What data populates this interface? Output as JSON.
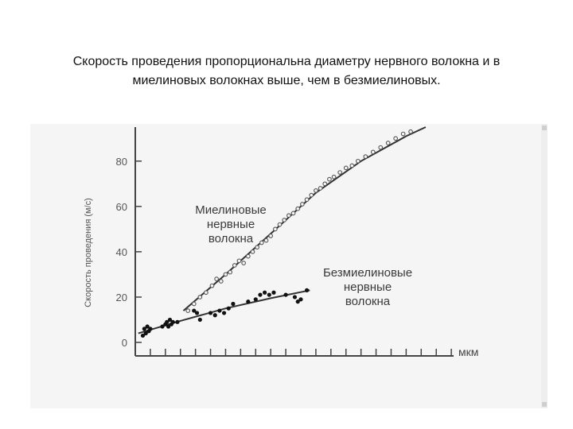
{
  "slide": {
    "title_line1": "Скорость проведения пропорциональна диаметру нервного волокна и в",
    "title_line2": "миелиновых волокнах выше, чем в безмиелиновых."
  },
  "colors": {
    "panel_bg": "#f5f5f5",
    "axis": "#444444",
    "curve": "#333333",
    "myelinated_marker_stroke": "#555555",
    "unmyelinated_marker_fill": "#111111"
  },
  "chart_data": {
    "type": "scatter",
    "ylabel": "Скорость проведения (м/с)",
    "xlabel": "мкм",
    "ylim": [
      0,
      95
    ],
    "xlim": [
      0,
      22
    ],
    "yticks": [
      "0",
      "20",
      "40",
      "60",
      "80"
    ],
    "ytick_values": [
      0,
      20,
      40,
      60,
      80
    ],
    "xtick_values": [
      1,
      2,
      3,
      4,
      5,
      6,
      7,
      8,
      9,
      10,
      11,
      12,
      13,
      14,
      15,
      16,
      17,
      18,
      19,
      20,
      21
    ],
    "grid": false,
    "legend": "none",
    "series": [
      {
        "name_lines": [
          "Миелиновые",
          "нервные",
          "волокна"
        ],
        "marker": "open-circle",
        "points": [
          [
            3.5,
            14
          ],
          [
            3.9,
            17
          ],
          [
            4.3,
            20
          ],
          [
            4.7,
            22
          ],
          [
            5.1,
            25
          ],
          [
            5.4,
            28
          ],
          [
            5.7,
            27
          ],
          [
            6.0,
            30
          ],
          [
            6.3,
            31
          ],
          [
            6.6,
            34
          ],
          [
            6.9,
            36
          ],
          [
            7.2,
            35
          ],
          [
            7.5,
            38
          ],
          [
            7.8,
            40
          ],
          [
            8.1,
            42
          ],
          [
            8.4,
            44
          ],
          [
            8.7,
            45
          ],
          [
            9.0,
            47
          ],
          [
            9.3,
            50
          ],
          [
            9.6,
            52
          ],
          [
            9.9,
            54
          ],
          [
            10.2,
            56
          ],
          [
            10.5,
            57
          ],
          [
            10.8,
            59
          ],
          [
            11.1,
            61
          ],
          [
            11.4,
            63
          ],
          [
            11.7,
            65
          ],
          [
            12.0,
            67
          ],
          [
            12.3,
            68
          ],
          [
            12.6,
            70
          ],
          [
            12.9,
            72
          ],
          [
            13.2,
            73
          ],
          [
            13.6,
            75
          ],
          [
            14.0,
            77
          ],
          [
            14.4,
            78
          ],
          [
            14.8,
            80
          ],
          [
            15.3,
            82
          ],
          [
            15.8,
            84
          ],
          [
            16.3,
            86
          ],
          [
            16.8,
            88
          ],
          [
            17.3,
            90
          ],
          [
            17.8,
            92
          ],
          [
            18.3,
            93
          ]
        ],
        "fit_line": [
          [
            3.2,
            14
          ],
          [
            6,
            30
          ],
          [
            9,
            48
          ],
          [
            12,
            66
          ],
          [
            15,
            80
          ],
          [
            18,
            91
          ],
          [
            19.3,
            95
          ]
        ]
      },
      {
        "name_lines": [
          "Безмиелиновые",
          "нервные",
          "волокна"
        ],
        "marker": "filled-circle",
        "points": [
          [
            0.5,
            3
          ],
          [
            0.6,
            6
          ],
          [
            0.7,
            4
          ],
          [
            0.8,
            7
          ],
          [
            0.9,
            5
          ],
          [
            1.0,
            6
          ],
          [
            1.8,
            7
          ],
          [
            2.0,
            8
          ],
          [
            2.1,
            9
          ],
          [
            2.2,
            7
          ],
          [
            2.3,
            10
          ],
          [
            2.4,
            8
          ],
          [
            2.5,
            9
          ],
          [
            2.8,
            9
          ],
          [
            3.9,
            14
          ],
          [
            4.1,
            13
          ],
          [
            4.3,
            10
          ],
          [
            5.0,
            13
          ],
          [
            5.3,
            12
          ],
          [
            5.6,
            14
          ],
          [
            5.9,
            13
          ],
          [
            6.2,
            15
          ],
          [
            6.5,
            17
          ],
          [
            7.5,
            18
          ],
          [
            8.0,
            19
          ],
          [
            8.3,
            21
          ],
          [
            8.6,
            22
          ],
          [
            8.9,
            21
          ],
          [
            9.2,
            22
          ],
          [
            10.0,
            21
          ],
          [
            10.6,
            20
          ],
          [
            10.8,
            18
          ],
          [
            11.0,
            19
          ],
          [
            11.4,
            23
          ]
        ],
        "fit_line": [
          [
            0.2,
            4
          ],
          [
            3,
            9.5
          ],
          [
            6,
            15
          ],
          [
            9,
            19.5
          ],
          [
            11.6,
            23
          ]
        ]
      }
    ]
  }
}
